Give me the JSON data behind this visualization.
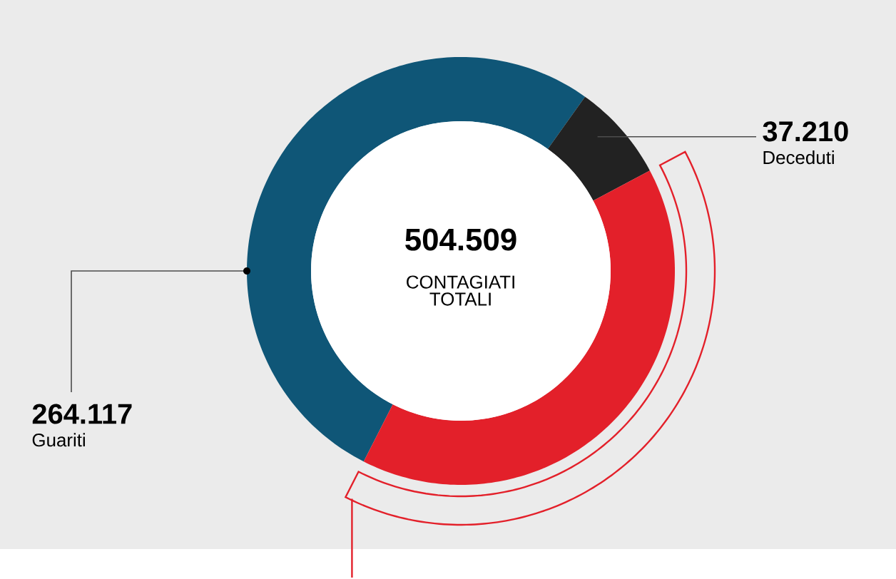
{
  "chart_data": {
    "type": "donut",
    "categories": [
      "Guariti",
      "Deceduti",
      null
    ],
    "values": [
      264117,
      37210,
      203182
    ],
    "colors": [
      "#0f5677",
      "#222222",
      "#e3202a"
    ],
    "value_labels": [
      "264.117",
      "37.210",
      null
    ],
    "annotations": [
      "504.509",
      "CONTAGIATI TOTALI"
    ]
  }
}
